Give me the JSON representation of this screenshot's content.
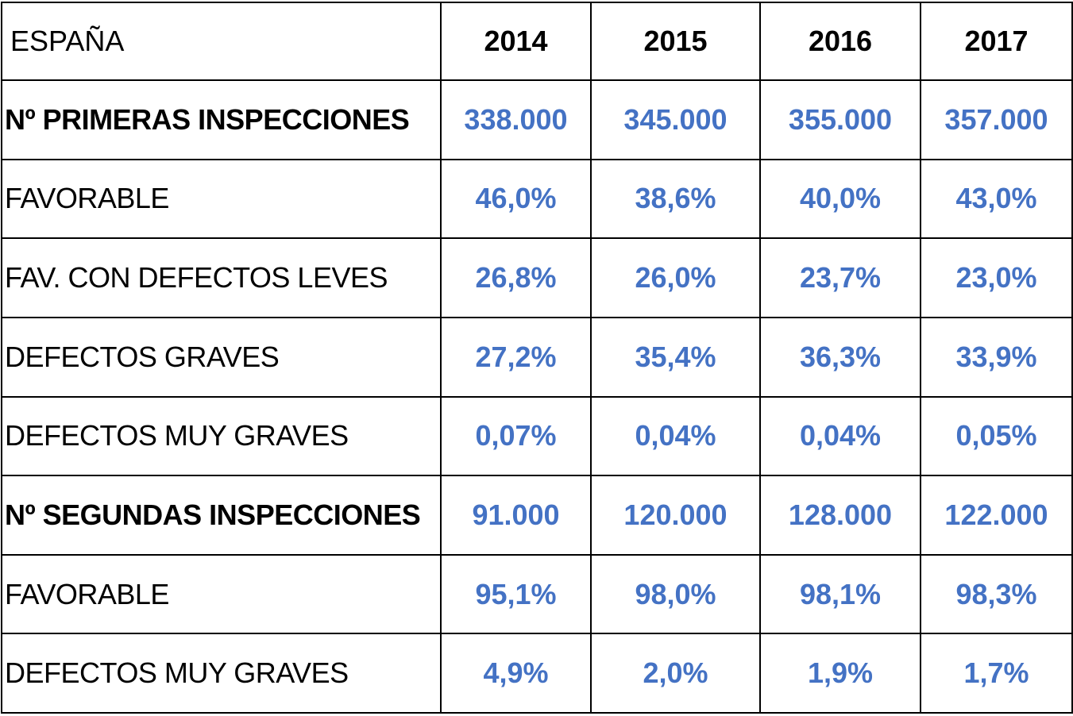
{
  "chart_data": {
    "type": "table",
    "corner_label": "ESPAÑA",
    "columns": [
      "2014",
      "2015",
      "2016",
      "2017"
    ],
    "rows": [
      {
        "label": "Nº PRIMERAS INSPECCIONES",
        "bold": true,
        "values": [
          "338.000",
          "345.000",
          "355.000",
          "357.000"
        ]
      },
      {
        "label": "FAVORABLE",
        "bold": false,
        "values": [
          "46,0%",
          "38,6%",
          "40,0%",
          "43,0%"
        ]
      },
      {
        "label": "FAV. CON DEFECTOS LEVES",
        "bold": false,
        "values": [
          "26,8%",
          "26,0%",
          "23,7%",
          "23,0%"
        ]
      },
      {
        "label": "DEFECTOS GRAVES",
        "bold": false,
        "values": [
          "27,2%",
          "35,4%",
          "36,3%",
          "33,9%"
        ]
      },
      {
        "label": "DEFECTOS MUY GRAVES",
        "bold": false,
        "values": [
          "0,07%",
          "0,04%",
          "0,04%",
          "0,05%"
        ]
      },
      {
        "label": "Nº SEGUNDAS INSPECCIONES",
        "bold": true,
        "values": [
          "91.000",
          "120.000",
          "128.000",
          "122.000"
        ]
      },
      {
        "label": "FAVORABLE",
        "bold": false,
        "values": [
          "95,1%",
          "98,0%",
          "98,1%",
          "98,3%"
        ]
      },
      {
        "label": "DEFECTOS MUY GRAVES",
        "bold": false,
        "values": [
          "4,9%",
          "2,0%",
          "1,9%",
          "1,7%"
        ]
      }
    ],
    "value_color": "#4472c4",
    "border_color": "#000000"
  }
}
